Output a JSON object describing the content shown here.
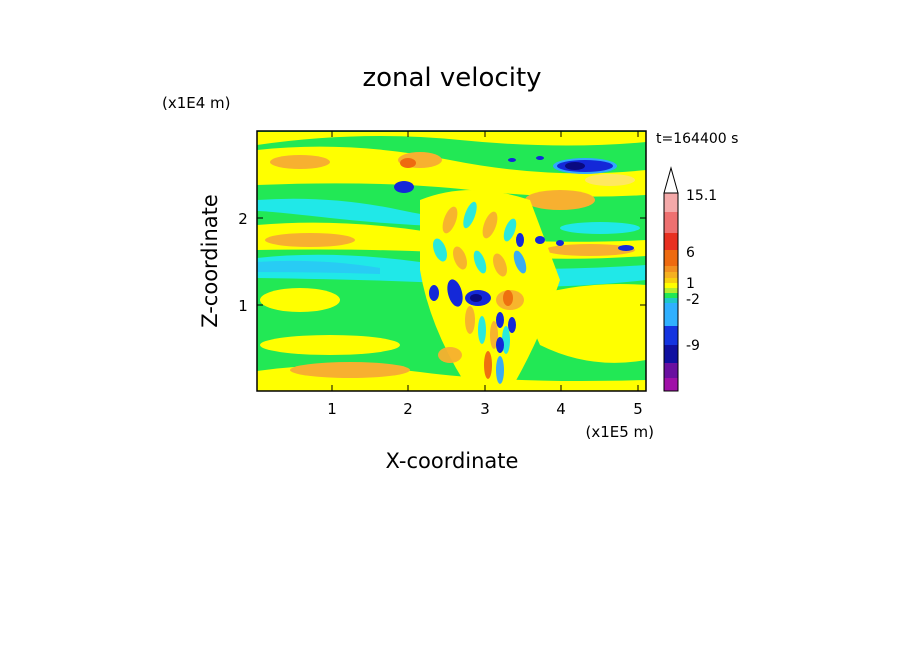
{
  "chart_data": {
    "type": "heatmap",
    "title": "zonal velocity",
    "time_label": "t=164400 s",
    "xlabel": "X-coordinate",
    "ylabel": "Z-coordinate",
    "x_unit": "(x1E5 m)",
    "y_unit": "(x1E4 m)",
    "xlim": [
      0,
      5.15
    ],
    "ylim": [
      0,
      2.98
    ],
    "x_ticks": [
      "1",
      "2",
      "3",
      "4",
      "5"
    ],
    "y_ticks": [
      "1",
      "2"
    ],
    "colorbar": {
      "labels": [
        "15.1",
        "6",
        "1",
        "-2",
        "-9"
      ],
      "colors": [
        "#f4a9a9",
        "#ee7070",
        "#e83020",
        "#ee6a10",
        "#f29020",
        "#f5b020",
        "#f7d010",
        "#ffff00",
        "#b4ee30",
        "#22e855",
        "#20c8c8",
        "#30b0ff",
        "#1434e0",
        "#1010a0",
        "#6a10a0",
        "#a010a8",
        "#e010c8"
      ]
    },
    "field_colors": {
      "background": "#22e855",
      "yellow": "#ffff00",
      "light_yellow": "#ffe860",
      "orange": "#f7b030",
      "dark_orange": "#ee6a10",
      "cyan": "#20e8e8",
      "blue": "#30a8ff",
      "dark_blue": "#1428d8",
      "navy": "#0a0a80"
    }
  }
}
